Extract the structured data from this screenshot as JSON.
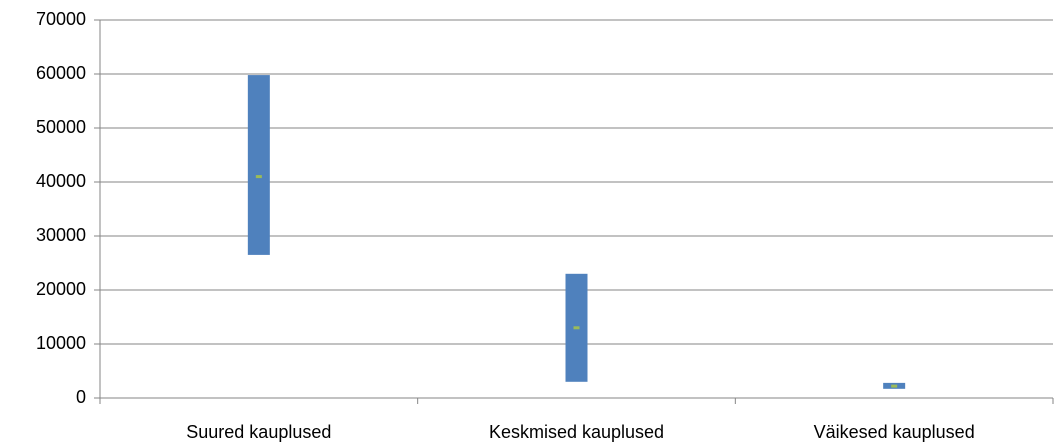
{
  "chart_data": {
    "type": "range",
    "categories": [
      "Suured kauplused",
      "Keskmised kauplused",
      "Väikesed kauplused"
    ],
    "low": [
      26500,
      3000,
      1700
    ],
    "high": [
      59800,
      23000,
      2800
    ],
    "mid": [
      41000,
      13000,
      2200
    ],
    "color": "#4f81bd",
    "mid_color": "#9bbb59",
    "ylim": [
      0,
      70000
    ],
    "yticks": [
      0,
      10000,
      20000,
      30000,
      40000,
      50000,
      60000,
      70000
    ],
    "grid": true
  }
}
